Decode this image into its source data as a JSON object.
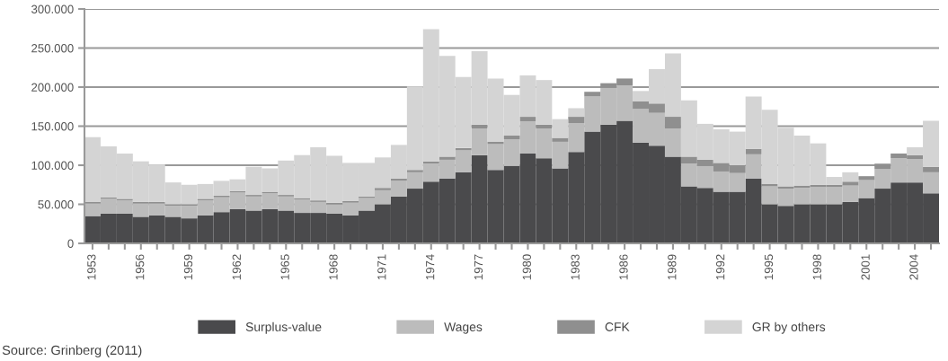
{
  "chart_data": {
    "type": "bar",
    "stacked": true,
    "categories": [
      "1953",
      null,
      null,
      "1956",
      null,
      null,
      "1959",
      null,
      null,
      "1962",
      null,
      null,
      "1965",
      null,
      null,
      "1968",
      null,
      null,
      "1971",
      null,
      null,
      "1974",
      null,
      null,
      "1977",
      null,
      null,
      "1980",
      null,
      null,
      "1983",
      null,
      null,
      "1986",
      null,
      null,
      "1989",
      null,
      null,
      "1992",
      null,
      null,
      "1995",
      null,
      null,
      "1998",
      null,
      null,
      "2001",
      null,
      null,
      "2004",
      null
    ],
    "series": [
      {
        "name": "Surplus-value",
        "color": "#4a4a4c",
        "values": [
          35000,
          38000,
          38000,
          34000,
          36000,
          34000,
          32000,
          36000,
          40000,
          44000,
          42000,
          44000,
          42000,
          39000,
          39000,
          38000,
          36000,
          42000,
          50000,
          60000,
          70000,
          79000,
          83000,
          91000,
          113000,
          94000,
          99000,
          115000,
          109000,
          96000,
          117000,
          143000,
          152000,
          157000,
          129000,
          125000,
          111000,
          73000,
          71000,
          66000,
          66000,
          83000,
          50000,
          48000,
          50000,
          50000,
          50000,
          53000,
          58000,
          70000,
          78000,
          78000,
          64000
        ]
      },
      {
        "name": "Wages",
        "color": "#bcbcbc",
        "values": [
          16000,
          19000,
          17000,
          17000,
          15000,
          14000,
          16000,
          19000,
          19000,
          21000,
          18000,
          20000,
          18000,
          17000,
          14000,
          12000,
          16000,
          16000,
          18000,
          20000,
          21000,
          23000,
          24000,
          28000,
          34000,
          33000,
          34000,
          41000,
          38000,
          34000,
          37000,
          45000,
          47000,
          45000,
          43000,
          42000,
          36000,
          29000,
          28000,
          26000,
          24000,
          31000,
          23000,
          22000,
          21000,
          22000,
          22000,
          21000,
          23000,
          25000,
          31000,
          30000,
          27000
        ]
      },
      {
        "name": "CFK",
        "color": "#8f8f8f",
        "values": [
          2000,
          2000,
          2000,
          2000,
          2000,
          2000,
          2000,
          2000,
          2000,
          2000,
          2000,
          2000,
          2000,
          2000,
          2000,
          2000,
          2000,
          2000,
          3000,
          3000,
          3000,
          3000,
          4000,
          3000,
          5000,
          3000,
          5000,
          6000,
          5000,
          5000,
          8000,
          6000,
          6000,
          9000,
          10000,
          12000,
          15000,
          9000,
          8000,
          11000,
          10000,
          7000,
          3000,
          3000,
          3000,
          3000,
          3000,
          5000,
          5000,
          7000,
          6000,
          5000,
          7000
        ]
      },
      {
        "name": "GR by others",
        "color": "#d4d4d4",
        "values": [
          83000,
          65000,
          58000,
          52000,
          48000,
          28000,
          25000,
          19000,
          19000,
          15000,
          36000,
          30000,
          44000,
          55000,
          68000,
          60000,
          49000,
          43000,
          39000,
          43000,
          107000,
          169000,
          129000,
          91000,
          94000,
          81000,
          52000,
          53000,
          57000,
          24000,
          11000,
          0,
          0,
          0,
          13000,
          44000,
          81000,
          72000,
          46000,
          43000,
          43000,
          67000,
          95000,
          75000,
          64000,
          53000,
          10000,
          12000,
          0,
          0,
          0,
          10000,
          59000
        ]
      }
    ],
    "ylim": [
      0,
      300000
    ],
    "yticks": [
      {
        "value": 0,
        "label": "0"
      },
      {
        "value": 50000,
        "label": "50.000"
      },
      {
        "value": 100000,
        "label": "100.000"
      },
      {
        "value": 150000,
        "label": "150.000"
      },
      {
        "value": 200000,
        "label": "200.000"
      },
      {
        "value": 250000,
        "label": "250.000"
      },
      {
        "value": 300000,
        "label": "300.000"
      }
    ],
    "grid": "y",
    "legend": "bottom",
    "annotations": [
      "Source: Grinberg (2011)"
    ]
  }
}
